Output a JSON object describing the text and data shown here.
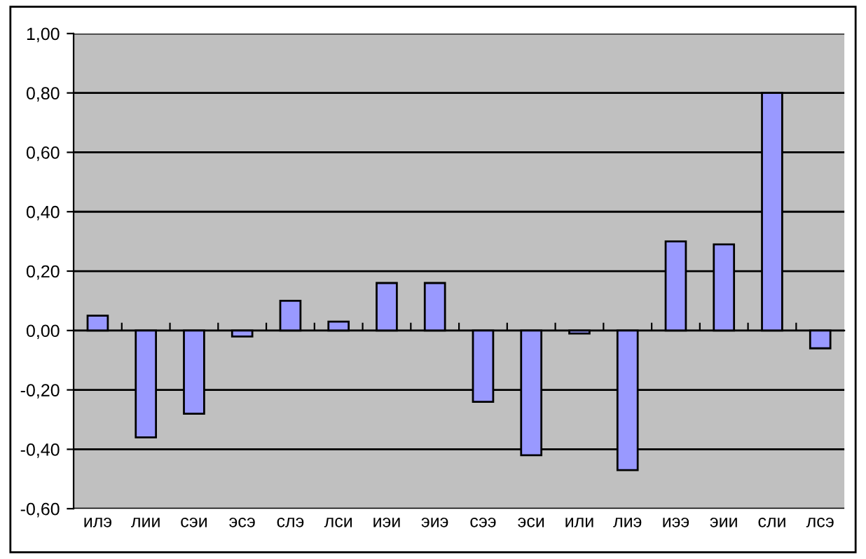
{
  "chart_data": {
    "type": "bar",
    "categories": [
      "илэ",
      "лии",
      "сэи",
      "эсэ",
      "слэ",
      "лси",
      "иэи",
      "эиэ",
      "сээ",
      "эси",
      "или",
      "лиэ",
      "иээ",
      "эии",
      "сли",
      "лсэ"
    ],
    "values": [
      0.05,
      -0.36,
      -0.28,
      -0.02,
      0.1,
      0.03,
      0.16,
      0.16,
      -0.24,
      -0.42,
      -0.01,
      -0.47,
      0.3,
      0.29,
      0.8,
      -0.06
    ],
    "color": "#9999ff",
    "ylim": [
      -0.6,
      1.0
    ],
    "yticks": [
      {
        "value": -0.6,
        "label": "-0,60"
      },
      {
        "value": -0.4,
        "label": "-0,40"
      },
      {
        "value": -0.2,
        "label": "-0,20"
      },
      {
        "value": 0,
        "label": "0,00"
      },
      {
        "value": 0.2,
        "label": "0,20"
      },
      {
        "value": 0.4,
        "label": "0,40"
      },
      {
        "value": 0.6,
        "label": "0,60"
      },
      {
        "value": 0.8,
        "label": "0,80"
      },
      {
        "value": 1.0,
        "label": "1,00"
      }
    ],
    "grid": "y"
  }
}
